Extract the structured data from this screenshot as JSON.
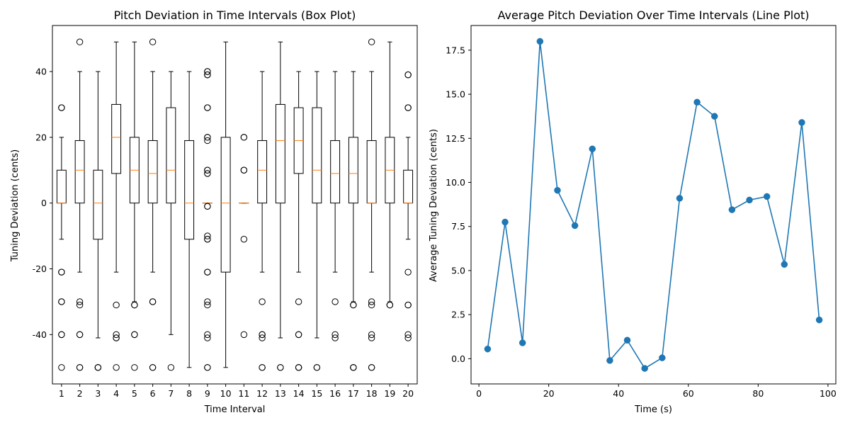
{
  "chart_data": [
    {
      "type": "box",
      "title": "Pitch Deviation in Time Intervals (Box Plot)",
      "xlabel": "Time Interval",
      "ylabel": "Tuning Deviation (cents)",
      "categories": [
        "1",
        "2",
        "3",
        "4",
        "5",
        "6",
        "7",
        "8",
        "9",
        "10",
        "11",
        "12",
        "13",
        "14",
        "15",
        "16",
        "17",
        "18",
        "19",
        "20"
      ],
      "yticks": [
        -40,
        -20,
        0,
        20,
        40
      ],
      "ylim": [
        -55,
        54
      ],
      "box_color": "#000000",
      "median_color": "#ff7f0e",
      "boxes": [
        {
          "whislo": -11,
          "q1": 0,
          "med": 0,
          "q3": 10,
          "whishi": 20,
          "fliers": [
            29,
            29,
            -21,
            -21,
            -30,
            -30,
            -40,
            -40,
            -50
          ]
        },
        {
          "whislo": -21,
          "q1": 0,
          "med": 10,
          "q3": 19,
          "whishi": 40,
          "fliers": [
            49,
            -30,
            -31,
            -40,
            -40,
            -50,
            -50
          ]
        },
        {
          "whislo": -41,
          "q1": -11,
          "med": 0,
          "q3": 10,
          "whishi": 40,
          "fliers": [
            -50,
            -50,
            -50
          ]
        },
        {
          "whislo": -21,
          "q1": 9,
          "med": 20,
          "q3": 30,
          "whishi": 49,
          "fliers": [
            -31,
            -40,
            -41,
            -41,
            -50
          ]
        },
        {
          "whislo": -30,
          "q1": 0,
          "med": 10,
          "q3": 20,
          "whishi": 49,
          "fliers": [
            -31,
            -31,
            -40,
            -40,
            -50
          ]
        },
        {
          "whislo": -21,
          "q1": 0,
          "med": 9,
          "q3": 19,
          "whishi": 40,
          "fliers": [
            49,
            -30,
            -30,
            -50,
            -50
          ]
        },
        {
          "whislo": -40,
          "q1": 0,
          "med": 10,
          "q3": 29,
          "whishi": 40,
          "fliers": [
            -50
          ]
        },
        {
          "whislo": -50,
          "q1": -11,
          "med": 0,
          "q3": 19,
          "whishi": 40,
          "fliers": []
        },
        {
          "whislo": 0,
          "q1": 0,
          "med": 0,
          "q3": 0,
          "whishi": 0,
          "fliers": [
            40,
            40,
            39,
            39,
            29,
            29,
            20,
            20,
            19,
            10,
            10,
            9,
            9,
            -1,
            -1,
            -10,
            -11,
            -11,
            -21,
            -21,
            -30,
            -31,
            -40,
            -41,
            -50,
            -50
          ]
        },
        {
          "whislo": -50,
          "q1": -21,
          "med": 0,
          "q3": 20,
          "whishi": 49,
          "fliers": []
        },
        {
          "whislo": 0,
          "q1": 0,
          "med": 0,
          "q3": 0,
          "whishi": 0,
          "fliers": [
            20,
            20,
            10,
            10,
            -11,
            -40
          ]
        },
        {
          "whislo": -21,
          "q1": 0,
          "med": 10,
          "q3": 19,
          "whishi": 40,
          "fliers": [
            -30,
            -40,
            -40,
            -41,
            -50,
            -50
          ]
        },
        {
          "whislo": -41,
          "q1": 0,
          "med": 19,
          "q3": 30,
          "whishi": 49,
          "fliers": [
            -50,
            -50
          ]
        },
        {
          "whislo": -21,
          "q1": 9,
          "med": 19,
          "q3": 29,
          "whishi": 40,
          "fliers": [
            -30,
            -40,
            -40,
            -50,
            -50,
            -50
          ]
        },
        {
          "whislo": -41,
          "q1": 0,
          "med": 10,
          "q3": 29,
          "whishi": 40,
          "fliers": [
            -50,
            -50
          ]
        },
        {
          "whislo": -21,
          "q1": 0,
          "med": 9,
          "q3": 19,
          "whishi": 40,
          "fliers": [
            -30,
            -40,
            -41
          ]
        },
        {
          "whislo": -30,
          "q1": 0,
          "med": 9,
          "q3": 20,
          "whishi": 40,
          "fliers": [
            -31,
            -31,
            -50,
            -50,
            -50
          ]
        },
        {
          "whislo": -21,
          "q1": 0,
          "med": 0,
          "q3": 19,
          "whishi": 40,
          "fliers": [
            49,
            -30,
            -31,
            -40,
            -41,
            -50,
            -50
          ]
        },
        {
          "whislo": -30,
          "q1": 0,
          "med": 10,
          "q3": 20,
          "whishi": 49,
          "fliers": [
            -31,
            -31
          ]
        },
        {
          "whislo": -11,
          "q1": 0,
          "med": 0,
          "q3": 10,
          "whishi": 20,
          "fliers": [
            39,
            39,
            29,
            29,
            -21,
            -31,
            -31,
            -40,
            -41
          ]
        }
      ]
    },
    {
      "type": "line",
      "title": "Average Pitch Deviation Over Time Intervals (Line Plot)",
      "xlabel": "Time (s)",
      "ylabel": "Average Tuning Deviation (cents)",
      "color": "#1f77b4",
      "marker": "circle",
      "xticks": [
        0,
        20,
        40,
        60,
        80,
        100
      ],
      "yticks": [
        0.0,
        2.5,
        5.0,
        7.5,
        10.0,
        12.5,
        15.0,
        17.5
      ],
      "ytick_labels": [
        "0.0",
        "2.5",
        "5.0",
        "7.5",
        "10.0",
        "12.5",
        "15.0",
        "17.5"
      ],
      "xlim": [
        -2.25,
        102.25
      ],
      "ylim": [
        -1.43,
        18.9
      ],
      "x": [
        2.5,
        7.5,
        12.5,
        17.5,
        22.5,
        27.5,
        32.5,
        37.5,
        42.5,
        47.5,
        52.5,
        57.5,
        62.5,
        67.5,
        72.5,
        77.5,
        82.5,
        87.5,
        92.5,
        97.5
      ],
      "y": [
        0.55,
        7.75,
        0.9,
        18.0,
        9.55,
        7.55,
        11.9,
        -0.1,
        1.05,
        -0.55,
        0.05,
        9.1,
        14.55,
        13.75,
        8.45,
        9.0,
        9.2,
        5.35,
        13.4,
        2.2
      ]
    }
  ]
}
